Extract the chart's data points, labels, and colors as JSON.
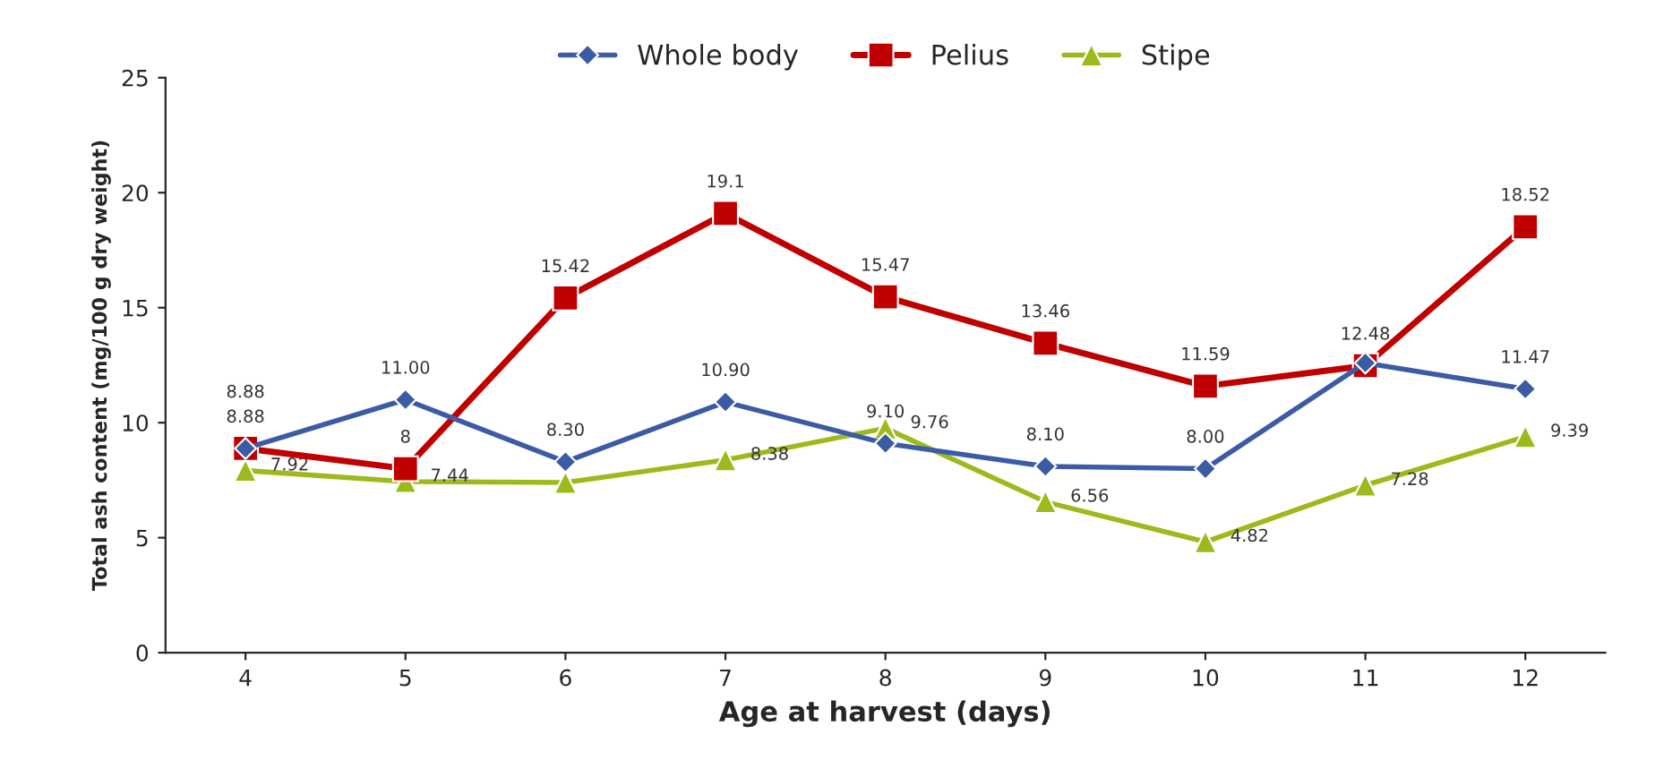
{
  "chart_data": {
    "type": "line",
    "xlabel": "Age at harvest (days)",
    "ylabel": "Total ash content (mg/100 g dry weight)",
    "categories": [
      "4",
      "5",
      "6",
      "7",
      "8",
      "9",
      "10",
      "11",
      "12"
    ],
    "series": [
      {
        "name": "Whole body",
        "color": "#3b5ba5",
        "marker": "diamond",
        "values": [
          8.88,
          11.0,
          8.3,
          10.9,
          9.1,
          8.1,
          8.0,
          12.6,
          11.47
        ],
        "value_labels": [
          "8.88",
          "11.00",
          "8.30",
          "10.90",
          "9.10",
          "8.10",
          "8.00",
          null,
          "11.47"
        ]
      },
      {
        "name": "Pelius",
        "color": "#c00000",
        "marker": "square",
        "values": [
          8.88,
          8,
          15.42,
          19.1,
          15.47,
          13.46,
          11.59,
          12.48,
          18.52
        ],
        "value_labels": [
          "8.88",
          "8",
          "15.42",
          "19.1",
          "15.47",
          "13.46",
          "11.59",
          "12.48",
          "18.52"
        ]
      },
      {
        "name": "Stipe",
        "color": "#9bbb1c",
        "marker": "triangle",
        "values": [
          7.92,
          7.44,
          7.4,
          8.38,
          9.76,
          6.56,
          4.82,
          7.28,
          9.39
        ],
        "value_labels": [
          "7.92",
          "7.44",
          null,
          "8.38",
          "9.76",
          "6.56",
          "4.82",
          "7.28",
          "9.39"
        ]
      }
    ],
    "ylim": [
      0,
      25
    ],
    "yticks": [
      0,
      5,
      10,
      15,
      20,
      25
    ],
    "grid": false,
    "legend": "top"
  }
}
